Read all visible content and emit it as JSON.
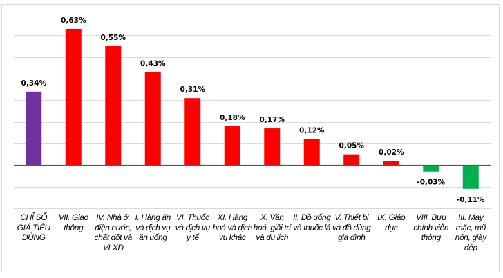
{
  "chart_data": {
    "type": "bar",
    "categories": [
      "CHỈ SỐ GIÁ TIÊU DÙNG",
      "VII. Giao thông",
      "IV. Nhà ở, điện nước, chất đốt và VLXD",
      "I. Hàng ăn và dịch vụ ăn uống",
      "VI. Thuốc và dịch vụ y tế",
      "XI. Hàng hoá và dịch vụ khác",
      "X. Văn hoá, giải trí và du lịch",
      "II. Đồ uống và thuốc lá",
      "V. Thiết bị và đồ dùng gia đình",
      "IX. Giáo dục",
      "VIII. Bưu chính viễn thông",
      "III. May mặc, mũ nón, giày dép"
    ],
    "values": [
      0.34,
      0.63,
      0.55,
      0.43,
      0.31,
      0.18,
      0.17,
      0.12,
      0.05,
      0.02,
      -0.03,
      -0.11
    ],
    "data_labels": [
      "0,34%",
      "0,63%",
      "0,55%",
      "0,43%",
      "0,31%",
      "0,18%",
      "0,17%",
      "0,12%",
      "0,05%",
      "0,02%",
      "-0,03%",
      "-0,11%"
    ],
    "ylim": [
      -0.2,
      0.7
    ],
    "grid": true,
    "colors": {
      "index": "#7030a0",
      "increase": "#ff0000",
      "decrease": "#00b050"
    }
  }
}
